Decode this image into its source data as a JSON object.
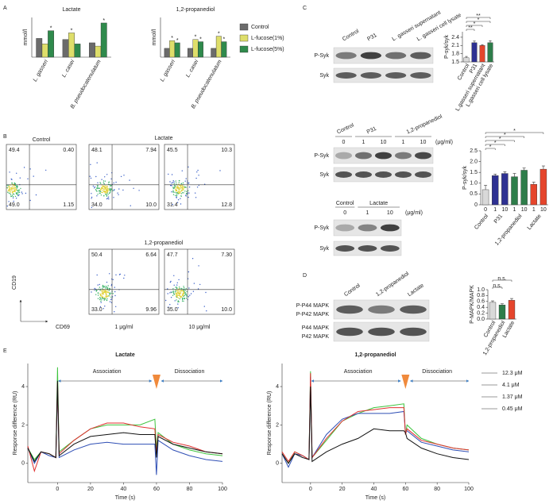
{
  "panel_labels": [
    "A",
    "B",
    "C",
    "D",
    "E"
  ],
  "A": {
    "type": "grouped_bar",
    "ylabel": "mmol/l",
    "categories": [
      "L. gasseri",
      "L. casei",
      "B. pseudocatenulatum"
    ],
    "ylim": [
      0,
      18
    ],
    "series": [
      {
        "name": "Control",
        "color": "#6b6b6b"
      },
      {
        "name": "L-fucose(1%)",
        "color": "#dede6a"
      },
      {
        "name": "L-fucose(5%)",
        "color": "#2f8a4c"
      }
    ],
    "subplots": [
      {
        "title": "Lactate",
        "values": [
          [
            8.5,
            8,
            6.5
          ],
          [
            6,
            11,
            5
          ],
          [
            12,
            6,
            15.5
          ]
        ],
        "stars": [
          [
            "*"
          ],
          [
            "*"
          ],
          [
            "*"
          ]
        ]
      },
      {
        "title": "1,2-propanediol",
        "values": [
          [
            4,
            4,
            4
          ],
          [
            7.5,
            8,
            9.5
          ],
          [
            6.5,
            7,
            7
          ]
        ],
        "stars": [
          [
            "*",
            "*"
          ],
          [
            "*",
            "*"
          ],
          [
            "*",
            "*"
          ]
        ]
      }
    ]
  },
  "B": {
    "titles": {
      "control": "Control",
      "lactate": "Lactate",
      "propanediol": "1,2-propanediol"
    },
    "y_axis": "CD19",
    "x_axis": "CD69",
    "doses": [
      "1 μg/ml",
      "10 μg/ml"
    ],
    "plots": [
      [
        "49.4",
        "0.40",
        "49.0",
        "1.15"
      ],
      [
        "48.1",
        "7.94",
        "34.0",
        "10.0"
      ],
      [
        "45.5",
        "10.3",
        "31.4",
        "12.8"
      ],
      [
        "50.4",
        "6.64",
        "33.0",
        "9.96"
      ],
      [
        "47.7",
        "7.30",
        "35.0",
        "10.0"
      ]
    ]
  },
  "C": {
    "blot1": {
      "lanes": [
        "Control",
        "P31",
        "L. gasseri supernatant",
        "L. gasseri cell lysate"
      ],
      "rows": [
        "P-Syk",
        "Syk"
      ]
    },
    "chart1": {
      "type": "bar",
      "ylabel": "P-syk/syk",
      "categories": [
        "Control",
        "P31",
        "L.gasseri supernatant",
        "L.gasseri cell lysate"
      ],
      "values": [
        1.65,
        2.2,
        2.1,
        2.2
      ],
      "errors": [
        0.05,
        0.06,
        0.03,
        0.07
      ],
      "colors": [
        "#d9d9d9",
        "#2e3192",
        "#e5452c",
        "#2e7d4a"
      ],
      "ylim": [
        1.5,
        2.6
      ],
      "yticks": [
        1.5,
        1.8,
        2.1,
        2.4
      ],
      "significance": [
        "**",
        "*",
        "*",
        "**"
      ]
    },
    "blot2": {
      "groups": [
        "Control",
        "P31",
        "1,2-propanediol"
      ],
      "doses": [
        "0",
        "1",
        "10",
        "1",
        "10"
      ],
      "unit": "(μg/ml)",
      "rows": [
        "P-Syk",
        "Syk"
      ]
    },
    "blot3": {
      "groups": [
        "Control",
        "Lactate"
      ],
      "doses": [
        "0",
        "1",
        "10"
      ],
      "unit": "(μg/ml)",
      "rows": [
        "P-Syk",
        "Syk"
      ]
    },
    "chart2": {
      "type": "bar",
      "ylabel": "P-syk/syk",
      "categories": [
        "0",
        "1",
        "10",
        "1",
        "10",
        "1",
        "10"
      ],
      "groups": [
        "Control",
        "P31",
        "1,2-propanediol",
        "Lactate"
      ],
      "values": [
        0.7,
        1.35,
        1.45,
        1.3,
        1.6,
        0.95,
        1.65
      ],
      "errors": [
        0.2,
        0.07,
        0.08,
        0.15,
        0.1,
        0.1,
        0.15
      ],
      "colors": [
        "#d9d9d9",
        "#2e3192",
        "#2e3192",
        "#2e7d4a",
        "#2e7d4a",
        "#e5452c",
        "#e5452c"
      ],
      "ylim": [
        0,
        2.5
      ],
      "yticks": [
        0,
        0.5,
        {
          "value": 1,
          "label": "1.0"
        },
        1.5,
        {
          "value": 2,
          "label": "2.0"
        },
        2.5
      ],
      "significance": [
        "*",
        "*",
        "*",
        "*",
        "*"
      ]
    }
  },
  "D": {
    "blot": {
      "lanes": [
        "Control",
        "1,2-propanediol",
        "Lactate"
      ],
      "rows": [
        "P-P44 MAPK",
        "P-P42 MAPK",
        "P44 MAPK",
        "P42 MAPK"
      ]
    },
    "chart": {
      "type": "bar",
      "ylabel": "P-MAPK/MAPK",
      "categories": [
        "Control",
        "1,2-propanediol",
        "Lactate"
      ],
      "values": [
        0.57,
        0.48,
        0.64
      ],
      "errors": [
        0.05,
        0.04,
        0.06
      ],
      "colors": [
        "#d9d9d9",
        "#2e7d4a",
        "#e5452c"
      ],
      "ylim": [
        0,
        1
      ],
      "yticks": [
        {
          "value": 0,
          "label": "0.0"
        },
        0.2,
        0.4,
        0.6,
        0.8,
        {
          "value": 1,
          "label": "1.0"
        }
      ],
      "significance": [
        "n.s.",
        "n.s."
      ]
    }
  },
  "E": {
    "type": "line",
    "xlabel": "Time (s)",
    "ylabel": "Response difference (RU)",
    "xlim": [
      -18,
      100
    ],
    "ylim": [
      -1,
      5.2
    ],
    "xticks": [
      0,
      20,
      40,
      60,
      80,
      100
    ],
    "yticks": [
      0,
      2,
      4
    ],
    "annotations": [
      "Association",
      "Dissociation"
    ],
    "series": [
      {
        "name": "12.3 μM",
        "color": "#3cc43c"
      },
      {
        "name": "4.1 μM",
        "color": "#2f4fb5"
      },
      {
        "name": "1.37 μM",
        "color": "#e03030"
      },
      {
        "name": "0.45 μM",
        "color": "#111111"
      }
    ],
    "x": [
      -18,
      -14,
      -10,
      -5,
      -1,
      0,
      1,
      10,
      20,
      30,
      40,
      50,
      59,
      60,
      61,
      70,
      80,
      90,
      100
    ],
    "subplots": [
      {
        "title": "Lactate",
        "values": [
          [
            0.8,
            0.2,
            0.6,
            0.5,
            0.3,
            5.0,
            0.6,
            1.2,
            1.8,
            2.0,
            2.0,
            2.0,
            2.3,
            0.8,
            1.6,
            1.0,
            0.7,
            0.5,
            0.4
          ],
          [
            0.8,
            0.0,
            0.6,
            0.4,
            0.3,
            4.0,
            0.3,
            0.7,
            1.0,
            1.1,
            1.0,
            1.0,
            1.0,
            -0.6,
            1.2,
            0.7,
            0.4,
            0.2,
            0.1
          ],
          [
            0.9,
            -0.4,
            0.6,
            0.5,
            0.3,
            4.2,
            0.5,
            1.2,
            1.8,
            2.1,
            2.1,
            1.9,
            1.8,
            0.5,
            1.5,
            1.1,
            0.9,
            0.6,
            0.5
          ],
          [
            0.8,
            0.1,
            0.6,
            0.5,
            0.3,
            4.3,
            0.4,
            1.0,
            1.4,
            1.5,
            1.6,
            1.5,
            1.5,
            0.3,
            1.4,
            1.0,
            0.8,
            0.6,
            0.5
          ]
        ]
      },
      {
        "title": "1,2-propanediol",
        "values": [
          [
            0.5,
            0.0,
            0.6,
            0.4,
            0.2,
            4.8,
            0.3,
            1.2,
            2.2,
            2.6,
            2.9,
            3.0,
            3.1,
            1.5,
            2.0,
            1.3,
            1.0,
            0.8,
            0.7
          ],
          [
            0.5,
            -0.2,
            0.5,
            0.4,
            0.2,
            4.5,
            0.3,
            1.5,
            2.3,
            2.6,
            2.6,
            2.6,
            2.7,
            1.6,
            1.7,
            1.1,
            0.9,
            0.7,
            0.6
          ],
          [
            0.6,
            0.1,
            0.6,
            0.4,
            0.2,
            4.7,
            0.3,
            1.3,
            2.2,
            2.7,
            2.8,
            2.9,
            2.9,
            1.5,
            1.8,
            1.2,
            1.0,
            0.8,
            0.7
          ],
          [
            0.5,
            0.0,
            0.5,
            0.3,
            0.2,
            4.0,
            0.1,
            0.6,
            1.0,
            1.3,
            1.8,
            1.7,
            1.7,
            1.6,
            1.3,
            0.8,
            0.5,
            0.3,
            0.2
          ]
        ]
      }
    ]
  }
}
